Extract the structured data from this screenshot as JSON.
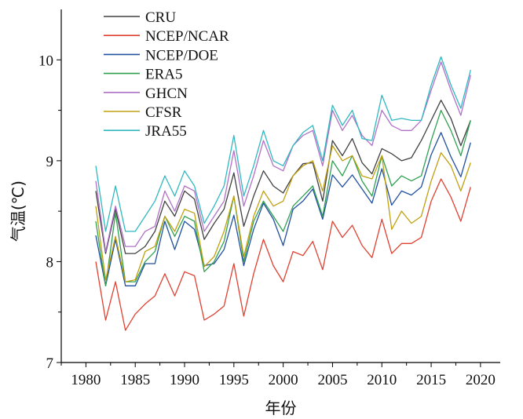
{
  "chart_data": {
    "type": "line",
    "title": "",
    "xlabel": "年份",
    "ylabel": "气温(℃)",
    "xlim": [
      1977.5,
      2022
    ],
    "ylim": [
      7,
      10.5
    ],
    "xticks": [
      1980,
      1985,
      1990,
      1995,
      2000,
      2005,
      2010,
      2015,
      2020
    ],
    "yticks": [
      7,
      8,
      9,
      10
    ],
    "legend_position": "top-left",
    "x": [
      1981,
      1982,
      1983,
      1984,
      1985,
      1986,
      1987,
      1988,
      1989,
      1990,
      1991,
      1992,
      1993,
      1994,
      1995,
      1996,
      1997,
      1998,
      1999,
      2000,
      2001,
      2002,
      2003,
      2004,
      2005,
      2006,
      2007,
      2008,
      2009,
      2010,
      2011,
      2012,
      2013,
      2014,
      2015,
      2016,
      2017,
      2018,
      2019
    ],
    "series": [
      {
        "name": "CRU",
        "color": "#404040",
        "values": [
          8.7,
          8.08,
          8.52,
          8.08,
          8.08,
          8.15,
          8.3,
          8.6,
          8.45,
          8.7,
          8.62,
          8.22,
          8.38,
          8.52,
          8.88,
          8.35,
          8.65,
          8.9,
          8.75,
          8.68,
          8.85,
          8.97,
          8.98,
          8.6,
          9.2,
          9.05,
          9.22,
          8.98,
          8.87,
          9.12,
          9.07,
          9.0,
          9.03,
          9.2,
          9.4,
          9.6,
          9.42,
          9.15,
          9.4
        ]
      },
      {
        "name": "NCEP/NCAR",
        "color": "#e04030",
        "values": [
          8.0,
          7.42,
          7.8,
          7.32,
          7.48,
          7.58,
          7.66,
          7.88,
          7.66,
          7.9,
          7.86,
          7.42,
          7.48,
          7.56,
          7.98,
          7.46,
          7.88,
          8.22,
          7.96,
          7.8,
          8.1,
          8.06,
          8.2,
          7.92,
          8.4,
          8.24,
          8.36,
          8.16,
          8.04,
          8.42,
          8.08,
          8.18,
          8.18,
          8.24,
          8.6,
          8.82,
          8.64,
          8.4,
          8.74
        ]
      },
      {
        "name": "NCEP/DOE",
        "color": "#2050a0",
        "values": [
          8.26,
          7.76,
          8.22,
          7.76,
          7.76,
          7.98,
          7.98,
          8.4,
          8.12,
          8.4,
          8.32,
          7.96,
          7.98,
          8.12,
          8.46,
          7.96,
          8.32,
          8.58,
          8.42,
          8.16,
          8.52,
          8.6,
          8.72,
          8.42,
          8.86,
          8.74,
          8.86,
          8.72,
          8.58,
          8.92,
          8.56,
          8.7,
          8.66,
          8.74,
          9.06,
          9.28,
          9.04,
          8.84,
          9.18
        ]
      },
      {
        "name": "ERA5",
        "color": "#30a050",
        "values": [
          8.4,
          7.76,
          8.48,
          7.8,
          7.8,
          8.0,
          8.1,
          8.45,
          8.25,
          8.45,
          8.4,
          7.9,
          8.0,
          8.2,
          8.65,
          8.0,
          8.4,
          8.6,
          8.45,
          8.3,
          8.55,
          8.65,
          8.75,
          8.45,
          9.0,
          8.85,
          9.05,
          8.8,
          8.65,
          9.05,
          8.75,
          8.85,
          8.8,
          8.85,
          9.2,
          9.5,
          9.3,
          9.05,
          9.4
        ]
      },
      {
        "name": "GHCN",
        "color": "#b070c8",
        "values": [
          8.8,
          8.1,
          8.55,
          8.15,
          8.15,
          8.3,
          8.35,
          8.7,
          8.5,
          8.75,
          8.7,
          8.3,
          8.45,
          8.6,
          9.1,
          8.55,
          8.85,
          9.2,
          8.95,
          8.9,
          9.15,
          9.25,
          9.3,
          8.95,
          9.5,
          9.3,
          9.45,
          9.25,
          9.15,
          9.5,
          9.35,
          9.3,
          9.3,
          9.4,
          9.7,
          9.98,
          9.7,
          9.45,
          9.85
        ]
      },
      {
        "name": "CFSR",
        "color": "#c0a010",
        "values": [
          8.55,
          7.82,
          8.25,
          7.8,
          7.82,
          8.1,
          8.15,
          8.45,
          8.3,
          8.52,
          8.48,
          7.95,
          8.05,
          8.3,
          8.65,
          8.05,
          8.45,
          8.7,
          8.55,
          8.6,
          8.85,
          8.95,
          9.0,
          8.7,
          9.15,
          9.0,
          9.05,
          8.85,
          8.82,
          9.05,
          8.32,
          8.5,
          8.38,
          8.45,
          8.8,
          9.08,
          8.95,
          8.7,
          8.98
        ]
      },
      {
        "name": "JRA55",
        "color": "#30b8c0",
        "values": [
          8.95,
          8.3,
          8.75,
          8.3,
          8.3,
          8.45,
          8.6,
          8.85,
          8.65,
          8.9,
          8.75,
          8.38,
          8.55,
          8.75,
          9.25,
          8.65,
          8.95,
          9.3,
          9.0,
          8.95,
          9.15,
          9.28,
          9.35,
          9.0,
          9.55,
          9.35,
          9.5,
          9.22,
          9.2,
          9.65,
          9.4,
          9.42,
          9.4,
          9.4,
          9.75,
          10.03,
          9.75,
          9.52,
          9.9
        ]
      }
    ]
  }
}
